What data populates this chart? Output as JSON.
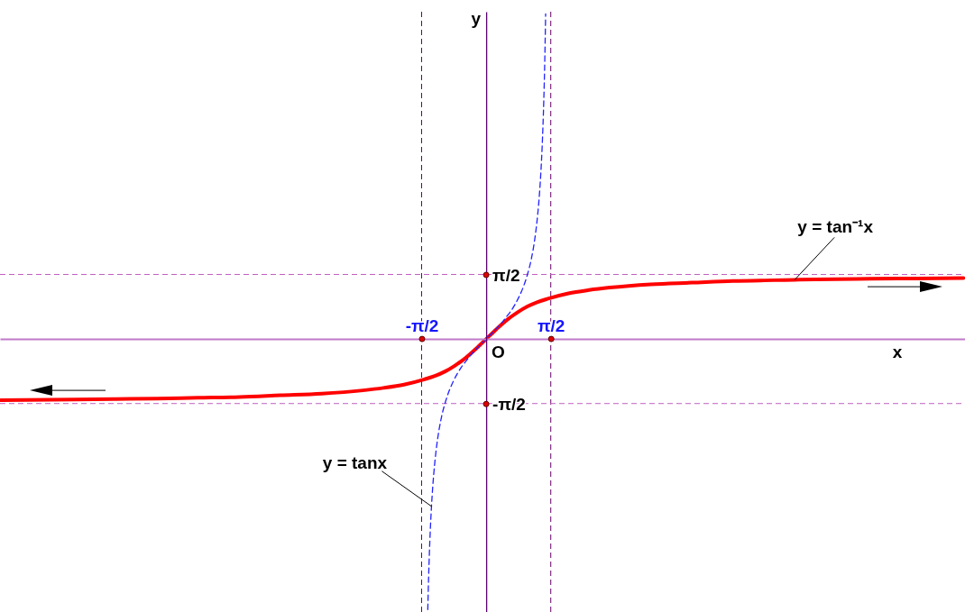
{
  "chart_data": {
    "type": "line",
    "xlabel": "x",
    "ylabel": "y",
    "xlim": [
      -11.82,
      11.64
    ],
    "ylim": [
      -6.64,
      7.96
    ],
    "xticks": [
      {
        "value": -1.57,
        "label": "-π/2"
      },
      {
        "value": 1.57,
        "label": "π/2"
      }
    ],
    "yticks": [
      {
        "value": -1.57,
        "label": "-π/2"
      },
      {
        "value": 1.57,
        "label": "π/2"
      }
    ],
    "series": [
      {
        "name": "y = tan⁻¹x",
        "color": "#ff0000",
        "line_style": "solid",
        "x": [
          -11.8,
          -10,
          -9,
          -8,
          -7,
          -6,
          -5,
          -4,
          -3,
          -2.5,
          -2,
          -1.5,
          -1.25,
          -1,
          -0.75,
          -0.5,
          -0.25,
          0,
          0.25,
          0.5,
          0.75,
          1,
          1.25,
          1.5,
          2,
          2.5,
          3,
          4,
          5,
          6,
          7,
          7.5,
          8,
          9,
          10,
          11.6
        ],
        "values": [
          -1.49,
          -1.47,
          -1.46,
          -1.45,
          -1.43,
          -1.41,
          -1.37,
          -1.33,
          -1.25,
          -1.19,
          -1.11,
          -0.98,
          -0.9,
          -0.79,
          -0.64,
          -0.46,
          -0.24,
          0,
          0.24,
          0.46,
          0.64,
          0.79,
          0.9,
          0.98,
          1.11,
          1.19,
          1.25,
          1.33,
          1.37,
          1.41,
          1.43,
          1.44,
          1.45,
          1.46,
          1.47,
          1.48
        ]
      },
      {
        "name": "y = tanx",
        "color": "#2222ff",
        "line_style": "dashed",
        "x": [
          -1.42,
          -1.4,
          -1.38,
          -1.36,
          -1.33,
          -1.3,
          -1.25,
          -1.2,
          -1.1,
          -1,
          -0.9,
          -0.8,
          -0.7,
          -0.6,
          -0.5,
          -0.4,
          -0.3,
          -0.2,
          -0.1,
          0,
          0.1,
          0.2,
          0.3,
          0.4,
          0.5,
          0.6,
          0.7,
          0.8,
          0.9,
          1,
          1.1,
          1.2,
          1.25,
          1.3,
          1.33,
          1.36,
          1.38,
          1.4,
          1.42,
          1.445
        ],
        "values": [
          -6.58,
          -5.8,
          -5.18,
          -4.67,
          -4.07,
          -3.6,
          -3.01,
          -2.57,
          -1.96,
          -1.56,
          -1.26,
          -1.03,
          -0.84,
          -0.68,
          -0.55,
          -0.42,
          -0.31,
          -0.2,
          -0.1,
          0,
          0.1,
          0.2,
          0.31,
          0.42,
          0.55,
          0.68,
          0.84,
          1.03,
          1.26,
          1.56,
          1.96,
          2.57,
          3.01,
          3.6,
          4.07,
          4.67,
          5.18,
          5.8,
          6.58,
          7.91
        ]
      }
    ],
    "ref_lines": [
      {
        "axis": "x",
        "value": -1.57,
        "color": "#660066",
        "line_style": "dashed"
      },
      {
        "axis": "x",
        "value": 1.57,
        "color": "#660066",
        "line_style": "dashed"
      },
      {
        "axis": "y",
        "value": 1.57,
        "color": "#c060c0",
        "line_style": "dashed"
      },
      {
        "axis": "y",
        "value": -1.57,
        "color": "#c060c0",
        "line_style": "dashed"
      }
    ],
    "annotations": [
      {
        "text": "O",
        "x": 0,
        "y": 0
      }
    ]
  }
}
